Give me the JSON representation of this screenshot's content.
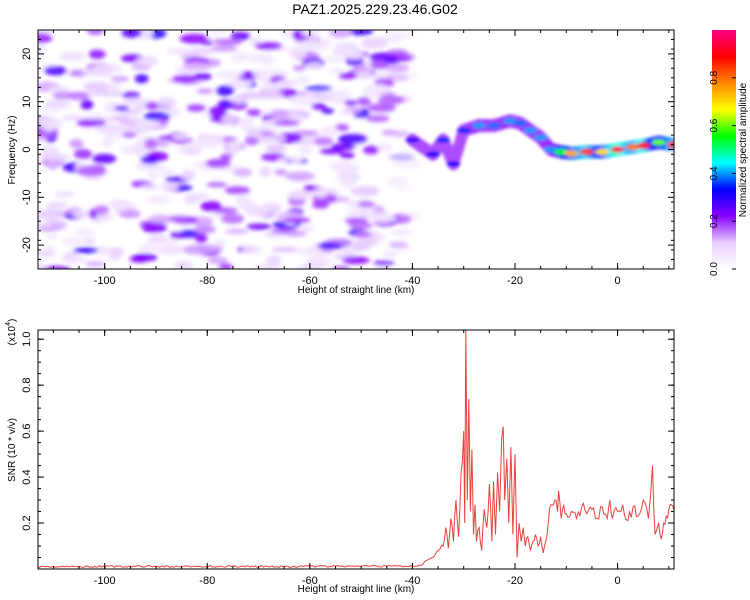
{
  "figure": {
    "title": "PAZ1.2025.229.23.46.G02"
  },
  "chart_data": [
    {
      "type": "heatmap",
      "xlabel": "Height of straight line (km)",
      "ylabel": "Frequency (Hz)",
      "xlim": [
        -113,
        11
      ],
      "ylim": [
        -25,
        25
      ],
      "xticks": [
        -100,
        -80,
        -60,
        -40,
        -20,
        0
      ],
      "yticks": [
        -20,
        -10,
        0,
        10,
        20
      ],
      "colorbar": {
        "label": "Normalized spectral amplitude",
        "range": [
          0,
          1
        ],
        "ticks": [
          0.0,
          0.2,
          0.4,
          0.6,
          0.8
        ],
        "tick_labels": [
          "0.0",
          "0.2",
          "0.4",
          "0.6",
          "0.8"
        ],
        "colors": [
          "#ffffff",
          "#e6ccff",
          "#8800ff",
          "#0000ff",
          "#00ffff",
          "#00ff00",
          "#ffff00",
          "#ff8800",
          "#ff0000",
          "#ff0088"
        ]
      },
      "noise_region": {
        "x": [
          -113,
          -40
        ],
        "y": [
          -25,
          25
        ],
        "amplitude": [
          0.05,
          0.3
        ]
      },
      "signal_ridge": [
        {
          "x": -40,
          "y": 2,
          "amp": 0.28
        },
        {
          "x": -36,
          "y": -1,
          "amp": 0.3
        },
        {
          "x": -34,
          "y": 2,
          "amp": 0.35
        },
        {
          "x": -32,
          "y": -3,
          "amp": 0.3
        },
        {
          "x": -30,
          "y": 4,
          "amp": 0.35
        },
        {
          "x": -27,
          "y": 5,
          "amp": 0.4
        },
        {
          "x": -24,
          "y": 5,
          "amp": 0.38
        },
        {
          "x": -21,
          "y": 6,
          "amp": 0.4
        },
        {
          "x": -19,
          "y": 5.5,
          "amp": 0.38
        },
        {
          "x": -17,
          "y": 4,
          "amp": 0.4
        },
        {
          "x": -15,
          "y": 2.5,
          "amp": 0.4
        },
        {
          "x": -13,
          "y": 0,
          "amp": 0.4
        },
        {
          "x": -11,
          "y": -0.5,
          "amp": 0.55
        },
        {
          "x": -9,
          "y": -0.8,
          "amp": 0.75
        },
        {
          "x": -6,
          "y": -0.5,
          "amp": 0.85
        },
        {
          "x": -3,
          "y": -0.5,
          "amp": 0.7
        },
        {
          "x": 0,
          "y": 0,
          "amp": 0.95
        },
        {
          "x": 3,
          "y": 0.5,
          "amp": 0.8
        },
        {
          "x": 5,
          "y": 0.8,
          "amp": 0.9
        },
        {
          "x": 8,
          "y": 1.5,
          "amp": 0.6
        },
        {
          "x": 11,
          "y": 1,
          "amp": 0.85
        }
      ]
    },
    {
      "type": "line",
      "xlabel": "Height of straight line (km)",
      "ylabel": "SNR (10 * v/v)",
      "y_multiplier_label": "(x10",
      "y_multiplier_exp": "4",
      "y_multiplier_close": ")",
      "xlim": [
        -113,
        11
      ],
      "ylim": [
        0,
        1.04
      ],
      "xticks": [
        -100,
        -80,
        -60,
        -40,
        -20,
        0
      ],
      "yticks": [
        0.2,
        0.4,
        0.6,
        0.8,
        1.0
      ],
      "ytick_labels": [
        "0.2",
        "0.4",
        "0.6",
        "0.8",
        "1.0"
      ],
      "series": [
        {
          "color": "#e8413c",
          "points": [
            [
              -113,
              0.01
            ],
            [
              -105,
              0.01
            ],
            [
              -95,
              0.012
            ],
            [
              -85,
              0.01
            ],
            [
              -75,
              0.012
            ],
            [
              -65,
              0.01
            ],
            [
              -55,
              0.012
            ],
            [
              -45,
              0.012
            ],
            [
              -40,
              0.013
            ],
            [
              -38,
              0.02
            ],
            [
              -37,
              0.04
            ],
            [
              -36,
              0.05
            ],
            [
              -35,
              0.08
            ],
            [
              -34,
              0.1
            ],
            [
              -33.5,
              0.18
            ],
            [
              -33,
              0.09
            ],
            [
              -32.5,
              0.22
            ],
            [
              -32,
              0.12
            ],
            [
              -31.5,
              0.3
            ],
            [
              -31,
              0.14
            ],
            [
              -30.5,
              0.42
            ],
            [
              -30,
              0.6
            ],
            [
              -29.8,
              0.2
            ],
            [
              -29.6,
              1.04
            ],
            [
              -29.3,
              0.3
            ],
            [
              -29.0,
              0.74
            ],
            [
              -28.7,
              0.25
            ],
            [
              -28.4,
              0.52
            ],
            [
              -28.1,
              0.15
            ],
            [
              -27.8,
              0.28
            ],
            [
              -27.5,
              0.12
            ],
            [
              -27,
              0.18
            ],
            [
              -26.5,
              0.08
            ],
            [
              -26,
              0.26
            ],
            [
              -25.5,
              0.18
            ],
            [
              -25,
              0.37
            ],
            [
              -24.5,
              0.12
            ],
            [
              -24.2,
              0.38
            ],
            [
              -23.8,
              0.15
            ],
            [
              -23.4,
              0.42
            ],
            [
              -23,
              0.25
            ],
            [
              -22.6,
              0.57
            ],
            [
              -22.3,
              0.62
            ],
            [
              -22,
              0.3
            ],
            [
              -21.6,
              0.48
            ],
            [
              -21.2,
              0.2
            ],
            [
              -20.8,
              0.53
            ],
            [
              -20.4,
              0.15
            ],
            [
              -20,
              0.5
            ],
            [
              -19.6,
              0.05
            ],
            [
              -19.2,
              0.2
            ],
            [
              -18.8,
              0.12
            ],
            [
              -18.4,
              0.18
            ],
            [
              -18,
              0.1
            ],
            [
              -17.5,
              0.14
            ],
            [
              -17,
              0.08
            ],
            [
              -16.5,
              0.12
            ],
            [
              -16,
              0.15
            ],
            [
              -15.5,
              0.1
            ],
            [
              -15,
              0.14
            ],
            [
              -14.5,
              0.07
            ],
            [
              -14,
              0.12
            ],
            [
              -13.5,
              0.2
            ],
            [
              -13,
              0.28
            ],
            [
              -12.5,
              0.28
            ],
            [
              -12,
              0.3
            ],
            [
              -11.7,
              0.25
            ],
            [
              -11.5,
              0.34
            ],
            [
              -11,
              0.22
            ],
            [
              -10.5,
              0.28
            ],
            [
              -10,
              0.24
            ],
            [
              -9,
              0.25
            ],
            [
              -8,
              0.22
            ],
            [
              -7,
              0.27
            ],
            [
              -6,
              0.24
            ],
            [
              -5,
              0.26
            ],
            [
              -4,
              0.22
            ],
            [
              -3,
              0.27
            ],
            [
              -2,
              0.22
            ],
            [
              -1.5,
              0.3
            ],
            [
              -1,
              0.22
            ],
            [
              0,
              0.25
            ],
            [
              1,
              0.28
            ],
            [
              2,
              0.21
            ],
            [
              3,
              0.27
            ],
            [
              4,
              0.23
            ],
            [
              5,
              0.3
            ],
            [
              6,
              0.22
            ],
            [
              6.8,
              0.45
            ],
            [
              7.3,
              0.15
            ],
            [
              8,
              0.2
            ],
            [
              8.5,
              0.13
            ],
            [
              9,
              0.2
            ],
            [
              9.5,
              0.23
            ],
            [
              10,
              0.26
            ],
            [
              10.5,
              0.28
            ],
            [
              11,
              0.26
            ]
          ]
        }
      ]
    }
  ]
}
